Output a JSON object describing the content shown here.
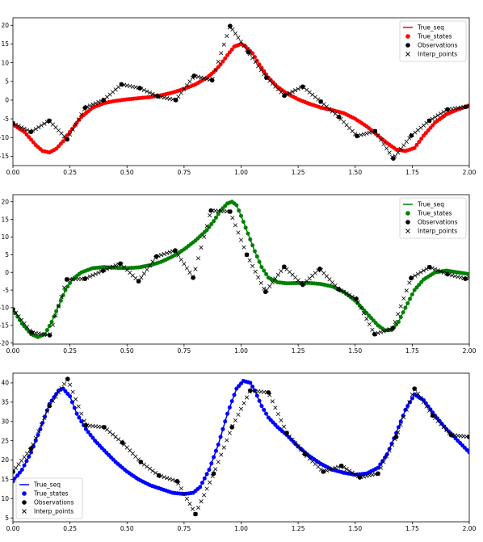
{
  "chart_data": [
    {
      "type": "line",
      "xlim": [
        0,
        2
      ],
      "ylim": [
        -17.5,
        22
      ],
      "xticks": [
        "0.00",
        "0.25",
        "0.50",
        "0.75",
        "1.00",
        "1.25",
        "1.50",
        "1.75",
        "2.00"
      ],
      "yticks": [
        "-15",
        "-10",
        "-5",
        "0",
        "5",
        "10",
        "15",
        "20"
      ],
      "grid": false,
      "legend": {
        "placement": "top-right",
        "entries": [
          "True_seq",
          "True_states",
          "Observations",
          "Interp_points"
        ]
      },
      "colors": {
        "series": "#ff0000",
        "observations": "#000000",
        "interp": "#000000"
      },
      "true_curve": {
        "x": [
          0,
          0.05,
          0.1,
          0.13,
          0.16,
          0.19,
          0.22,
          0.25,
          0.3,
          0.35,
          0.4,
          0.45,
          0.5,
          0.55,
          0.6,
          0.65,
          0.7,
          0.75,
          0.8,
          0.85,
          0.88,
          0.91,
          0.94,
          0.97,
          1.0,
          1.02,
          1.05,
          1.08,
          1.12,
          1.16,
          1.2,
          1.25,
          1.3,
          1.35,
          1.4,
          1.45,
          1.5,
          1.55,
          1.6,
          1.64,
          1.68,
          1.72,
          1.76,
          1.8,
          1.85,
          1.9,
          1.95,
          2.0
        ],
        "y": [
          -6.5,
          -8.5,
          -12,
          -13.6,
          -14.0,
          -13.0,
          -11.0,
          -8.5,
          -4.5,
          -2.0,
          -0.8,
          -0.2,
          0.2,
          0.5,
          0.8,
          1.3,
          2.0,
          3.0,
          4.2,
          6.0,
          7.5,
          9.5,
          12.0,
          14.3,
          15.0,
          14.3,
          12.5,
          9.5,
          6.0,
          3.5,
          1.8,
          0.2,
          -1.0,
          -2.0,
          -2.7,
          -3.5,
          -5.0,
          -7.0,
          -9.5,
          -11.5,
          -13.2,
          -13.6,
          -12.8,
          -9.5,
          -6.0,
          -3.8,
          -2.5,
          -1.5
        ]
      },
      "observations": {
        "x": [
          0.0,
          0.079,
          0.159,
          0.238,
          0.317,
          0.397,
          0.476,
          0.556,
          0.635,
          0.714,
          0.794,
          0.873,
          0.952,
          1.032,
          1.111,
          1.19,
          1.27,
          1.349,
          1.429,
          1.508,
          1.587,
          1.667,
          1.746,
          1.825,
          1.905,
          1.984
        ],
        "y": [
          -6.2,
          -8.5,
          -5.5,
          -10.5,
          -2.0,
          0.0,
          4.2,
          3.2,
          1.0,
          0.0,
          6.5,
          5.3,
          19.8,
          12.8,
          6.0,
          1.2,
          3.6,
          -0.4,
          -4.5,
          -9.6,
          -8.3,
          -15.6,
          -9.5,
          -5.5,
          -2.5,
          -1.8
        ]
      },
      "interp_points": {
        "x": [
          0.0,
          0.079,
          0.159,
          0.238,
          0.317,
          0.397,
          0.476,
          0.556,
          0.635,
          0.714,
          0.794,
          0.873,
          0.952,
          1.032,
          1.111,
          1.19,
          1.27,
          1.349,
          1.429,
          1.508,
          1.587,
          1.667,
          1.746,
          1.825,
          1.905,
          1.984,
          2.0
        ],
        "y": [
          -6.2,
          -8.5,
          -5.5,
          -10.5,
          -2.0,
          0.0,
          4.2,
          3.2,
          1.0,
          0.0,
          6.5,
          5.3,
          19.8,
          12.8,
          6.0,
          1.2,
          3.6,
          -0.4,
          -4.5,
          -9.6,
          -8.3,
          -15.6,
          -9.5,
          -5.5,
          -2.5,
          -1.8,
          -1.5
        ]
      }
    },
    {
      "type": "line",
      "xlim": [
        0,
        2
      ],
      "ylim": [
        -20.3,
        22
      ],
      "xticks": [
        "0.00",
        "0.25",
        "0.50",
        "0.75",
        "1.00",
        "1.25",
        "1.50",
        "1.75",
        "2.00"
      ],
      "yticks": [
        "-20",
        "-15",
        "-10",
        "-5",
        "0",
        "5",
        "10",
        "15",
        "20"
      ],
      "grid": false,
      "legend": {
        "placement": "top-right",
        "entries": [
          "True_seq",
          "True_states",
          "Observations",
          "Interp_points"
        ]
      },
      "colors": {
        "series": "#008000",
        "observations": "#000000",
        "interp": "#000000"
      },
      "true_curve": {
        "x": [
          0,
          0.04,
          0.08,
          0.11,
          0.14,
          0.17,
          0.2,
          0.23,
          0.26,
          0.3,
          0.35,
          0.4,
          0.45,
          0.5,
          0.55,
          0.6,
          0.65,
          0.7,
          0.75,
          0.8,
          0.85,
          0.88,
          0.91,
          0.94,
          0.96,
          0.98,
          1.0,
          1.03,
          1.06,
          1.09,
          1.12,
          1.16,
          1.2,
          1.25,
          1.3,
          1.35,
          1.4,
          1.45,
          1.5,
          1.55,
          1.6,
          1.63,
          1.66,
          1.69,
          1.72,
          1.76,
          1.8,
          1.85,
          1.9,
          1.95,
          2.0
        ],
        "y": [
          -10.5,
          -14.5,
          -17.5,
          -18.3,
          -17.5,
          -14.0,
          -9.5,
          -5.0,
          -2.0,
          0.0,
          1.2,
          1.5,
          1.3,
          1.2,
          1.4,
          2.0,
          3.0,
          4.5,
          6.5,
          9.0,
          12.0,
          14.5,
          17.5,
          19.5,
          20.0,
          19.0,
          16.0,
          11.0,
          6.0,
          1.5,
          -1.5,
          -2.8,
          -3.1,
          -3.0,
          -3.0,
          -3.3,
          -4.0,
          -5.5,
          -8.0,
          -11.5,
          -15.0,
          -16.4,
          -16.3,
          -14.0,
          -10.0,
          -5.0,
          -2.0,
          0.0,
          0.5,
          0.0,
          -0.5
        ]
      },
      "observations": {
        "x": [
          0.0,
          0.082,
          0.161,
          0.236,
          0.316,
          0.395,
          0.471,
          0.551,
          0.629,
          0.711,
          0.79,
          0.868,
          0.952,
          1.025,
          1.107,
          1.189,
          1.27,
          1.345,
          1.428,
          1.505,
          1.585,
          1.665,
          1.745,
          1.826,
          1.905,
          1.983
        ],
        "y": [
          -10.5,
          -17.0,
          -17.8,
          -2.0,
          -1.8,
          0.5,
          2.5,
          -2.5,
          4.5,
          6.2,
          -1.5,
          17.5,
          17.2,
          5.0,
          -5.5,
          1.6,
          -3.5,
          1.0,
          -4.8,
          -7.5,
          -17.5,
          -15.8,
          -1.6,
          1.5,
          -0.5,
          -1.8
        ]
      },
      "interp_points": {
        "x": [
          0.0,
          0.082,
          0.161,
          0.236,
          0.316,
          0.395,
          0.471,
          0.551,
          0.629,
          0.711,
          0.79,
          0.868,
          0.952,
          1.025,
          1.107,
          1.189,
          1.27,
          1.345,
          1.428,
          1.505,
          1.585,
          1.665,
          1.745,
          1.826,
          1.905,
          1.983,
          2.0
        ],
        "y": [
          -10.5,
          -17.0,
          -17.8,
          -2.0,
          -1.8,
          0.5,
          2.5,
          -2.5,
          4.5,
          6.2,
          -1.5,
          17.5,
          17.2,
          5.0,
          -5.5,
          1.6,
          -3.5,
          1.0,
          -4.8,
          -7.5,
          -17.5,
          -15.8,
          -1.6,
          1.5,
          -0.5,
          -1.8,
          -1.5
        ]
      }
    },
    {
      "type": "line",
      "xlim": [
        0,
        2
      ],
      "ylim": [
        4,
        42.5
      ],
      "xticks": [
        "0.00",
        "0.25",
        "0.50",
        "0.75",
        "1.00",
        "1.25",
        "1.50",
        "1.75",
        "2.00"
      ],
      "yticks": [
        "5",
        "10",
        "15",
        "20",
        "25",
        "30",
        "35",
        "40"
      ],
      "grid": false,
      "legend": {
        "placement": "lower-left",
        "entries": [
          "True_seq",
          "True_states",
          "Observations",
          "Interp_points"
        ]
      },
      "colors": {
        "series": "#0000ff",
        "observations": "#000000",
        "interp": "#000000"
      },
      "true_curve": {
        "x": [
          0,
          0.04,
          0.08,
          0.12,
          0.16,
          0.2,
          0.22,
          0.25,
          0.28,
          0.32,
          0.36,
          0.4,
          0.45,
          0.5,
          0.55,
          0.6,
          0.65,
          0.7,
          0.75,
          0.79,
          0.82,
          0.86,
          0.9,
          0.94,
          0.98,
          1.01,
          1.04,
          1.06,
          1.09,
          1.12,
          1.16,
          1.2,
          1.25,
          1.3,
          1.35,
          1.4,
          1.45,
          1.5,
          1.55,
          1.6,
          1.64,
          1.68,
          1.72,
          1.76,
          1.8,
          1.85,
          1.9,
          1.95,
          2.0
        ],
        "y": [
          14.5,
          17.5,
          22.0,
          28.0,
          34.5,
          38.0,
          38.5,
          36.5,
          32.0,
          28.0,
          25.0,
          22.5,
          19.5,
          17.0,
          15.0,
          13.5,
          12.5,
          11.5,
          11.2,
          11.5,
          13.0,
          17.5,
          24.0,
          32.0,
          38.5,
          40.5,
          40.0,
          38.0,
          34.0,
          31.0,
          28.5,
          26.5,
          23.5,
          21.0,
          19.0,
          17.5,
          16.7,
          16.2,
          16.5,
          18.0,
          21.5,
          27.0,
          33.0,
          37.0,
          35.5,
          31.5,
          28.0,
          25.0,
          22.0
        ]
      },
      "observations": {
        "x": [
          0.0,
          0.08,
          0.16,
          0.24,
          0.32,
          0.4,
          0.48,
          0.56,
          0.64,
          0.72,
          0.8,
          0.88,
          0.96,
          1.04,
          1.12,
          1.2,
          1.28,
          1.36,
          1.44,
          1.52,
          1.6,
          1.68,
          1.76,
          1.84,
          1.92,
          2.0
        ],
        "y": [
          17.0,
          23.0,
          34.0,
          41.0,
          29.0,
          28.5,
          24.5,
          19.5,
          16.0,
          14.5,
          6.0,
          16.5,
          28.5,
          38.0,
          37.5,
          27.0,
          21.5,
          17.0,
          18.5,
          15.5,
          16.5,
          26.0,
          38.5,
          31.5,
          26.5,
          26.0
        ]
      },
      "interp_points": {
        "x": [
          0.0,
          0.08,
          0.16,
          0.24,
          0.32,
          0.4,
          0.48,
          0.56,
          0.64,
          0.72,
          0.8,
          0.88,
          0.96,
          1.04,
          1.12,
          1.2,
          1.28,
          1.36,
          1.44,
          1.52,
          1.6,
          1.68,
          1.76,
          1.84,
          1.92,
          2.0
        ],
        "y": [
          17.0,
          23.0,
          34.0,
          41.0,
          29.0,
          28.5,
          24.5,
          19.5,
          16.0,
          14.5,
          6.0,
          16.5,
          28.5,
          38.0,
          37.5,
          27.0,
          21.5,
          17.0,
          18.5,
          15.5,
          16.5,
          26.0,
          38.5,
          31.5,
          26.5,
          26.0
        ]
      }
    }
  ]
}
